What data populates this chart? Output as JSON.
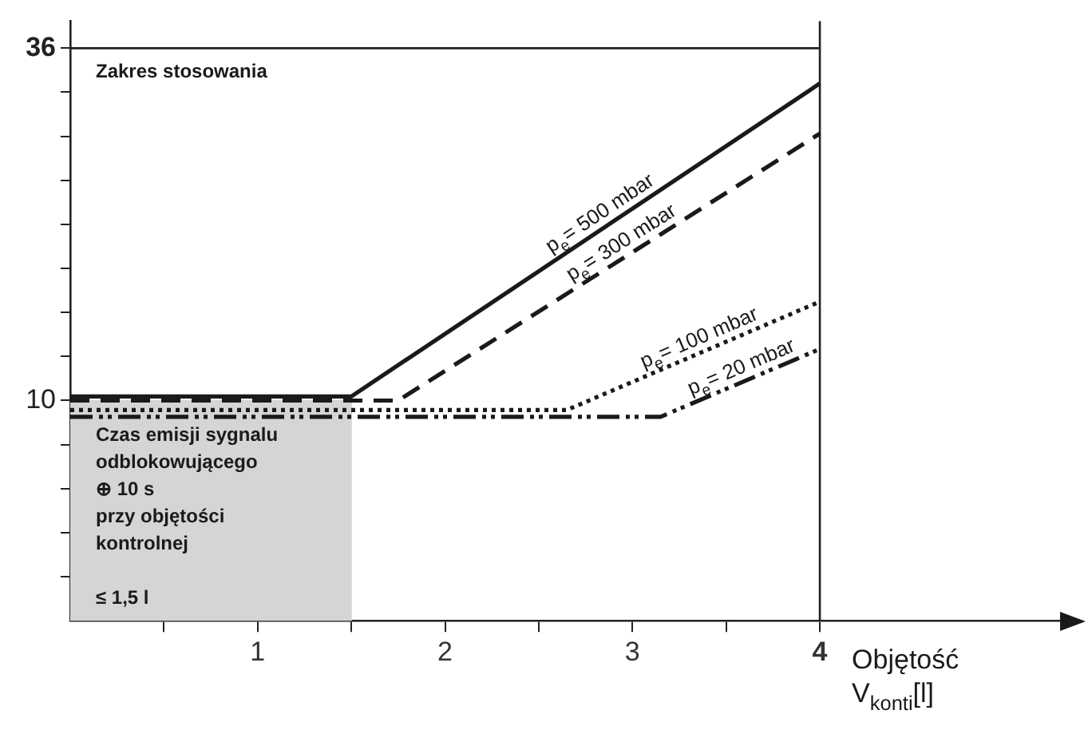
{
  "chart_data": {
    "type": "line",
    "xlabel": "Objętość\nV$_{konti}$[l]",
    "xlim": [
      0,
      5.35
    ],
    "xticks": [
      {
        "value": 0.5,
        "label": null
      },
      1,
      {
        "value": 1.5,
        "label": null
      },
      2,
      {
        "value": 2.5,
        "label": null
      },
      3,
      {
        "value": 3.5,
        "label": null
      },
      4
    ],
    "ylim": [
      -6.25,
      38
    ],
    "yticks": [
      {
        "value": -3,
        "label": null
      },
      {
        "value": 0.25,
        "label": null
      },
      {
        "value": 3.5,
        "label": null
      },
      {
        "value": 6.75,
        "label": null
      },
      10,
      {
        "value": 13.25,
        "label": null
      },
      {
        "value": 16.5,
        "label": null
      },
      {
        "value": 19.75,
        "label": null
      },
      {
        "value": 23,
        "label": null
      },
      {
        "value": 26.25,
        "label": null
      },
      {
        "value": 29.5,
        "label": null
      },
      {
        "value": 32.75,
        "label": null
      },
      36
    ],
    "series": [
      {
        "type": "bar",
        "color": "#d4d5d7",
        "x": [
          0.75
        ],
        "values": [
          16.25
        ],
        "base": [
          -6.25
        ]
      },
      {
        "name": "p$_{e}$= 500 mbar",
        "color": "#1a1a1a",
        "line_style": "solid",
        "x": [
          0,
          1.5,
          4
        ],
        "values": [
          10.3,
          10.3,
          33.4
        ]
      },
      {
        "name": "p$_{e}$= 300 mbar",
        "color": "#1a1a1a",
        "line_style": "dashed",
        "x": [
          0,
          1.75,
          4
        ],
        "values": [
          10,
          10,
          29.7
        ]
      },
      {
        "name": "p$_{e}$= 100 mbar",
        "color": "#1a1a1a",
        "line_style": "dotted",
        "x": [
          0,
          2.65,
          4
        ],
        "values": [
          9.3,
          9.3,
          17.3
        ]
      },
      {
        "name": "p$_{e}$= 20 mbar",
        "color": "#1a1a1a",
        "line_style": "dashdot",
        "x": [
          0,
          3.15,
          4
        ],
        "values": [
          8.8,
          8.8,
          13.8
        ]
      }
    ],
    "ref_lines": [
      {
        "axis": "x",
        "value": 4
      },
      {
        "axis": "y",
        "value": 36
      }
    ],
    "annotations": [
      "Zakres stosowania",
      "Czas emisji sygnalu\nodblokowującego\n⊕ 10 s\nprzy objętości\nkontrolnej\n\n≤ 1,5 l"
    ],
    "grid": false,
    "legend": false,
    "marker": "none"
  }
}
